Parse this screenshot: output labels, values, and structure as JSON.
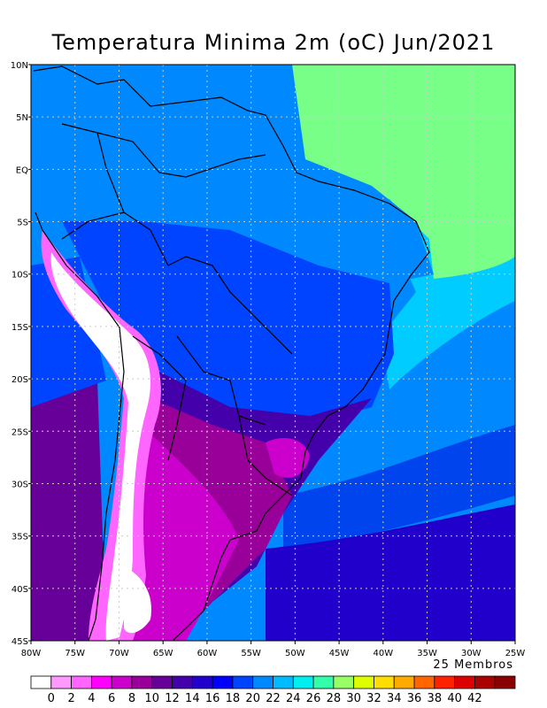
{
  "title": "Temperatura Minima 2m (oC) Jun/2021",
  "members_label": "25 Membros",
  "lat_ticks": [
    {
      "value": 10,
      "label": "10N"
    },
    {
      "value": 5,
      "label": "5N"
    },
    {
      "value": 0,
      "label": "EQ"
    },
    {
      "value": -5,
      "label": "5S"
    },
    {
      "value": -10,
      "label": "10S"
    },
    {
      "value": -15,
      "label": "15S"
    },
    {
      "value": -20,
      "label": "20S"
    },
    {
      "value": -25,
      "label": "25S"
    },
    {
      "value": -30,
      "label": "30S"
    },
    {
      "value": -35,
      "label": "35S"
    },
    {
      "value": -40,
      "label": "40S"
    },
    {
      "value": -45,
      "label": "45S"
    }
  ],
  "lon_ticks": [
    {
      "value": -80,
      "label": "80W"
    },
    {
      "value": -75,
      "label": "75W"
    },
    {
      "value": -70,
      "label": "70W"
    },
    {
      "value": -65,
      "label": "65W"
    },
    {
      "value": -60,
      "label": "60W"
    },
    {
      "value": -55,
      "label": "55W"
    },
    {
      "value": -50,
      "label": "50W"
    },
    {
      "value": -45,
      "label": "45W"
    },
    {
      "value": -40,
      "label": "40W"
    },
    {
      "value": -35,
      "label": "35W"
    },
    {
      "value": -30,
      "label": "30W"
    },
    {
      "value": -25,
      "label": "25W"
    }
  ],
  "colorbar": {
    "colors": [
      "#ffffff",
      "#ff99ff",
      "#ff66ff",
      "#ff00ff",
      "#cc00cc",
      "#990099",
      "#660099",
      "#4400aa",
      "#2200cc",
      "#0000ff",
      "#0044ff",
      "#0088ff",
      "#00bbff",
      "#00eeee",
      "#33ffaa",
      "#99ff66",
      "#ddff00",
      "#ffdd00",
      "#ffaa00",
      "#ff6600",
      "#ff2200",
      "#dd0000",
      "#aa0000",
      "#880000"
    ],
    "labels": [
      "0",
      "2",
      "4",
      "6",
      "8",
      "10",
      "12",
      "14",
      "16",
      "18",
      "20",
      "22",
      "24",
      "26",
      "28",
      "30",
      "32",
      "34",
      "36",
      "38",
      "40",
      "42"
    ]
  },
  "map_colors": {
    "ocean_north": "#77ff88",
    "ocean_mid": "#00ccff",
    "ocean_blue": "#0088ff",
    "ocean_deep": "#0044ee",
    "ocean_south": "#2200cc",
    "land_north": "#0088ff",
    "land_central": "#0044ff",
    "land_south": "#4400aa",
    "cold_purple": "#990099",
    "cold_magenta": "#cc00cc",
    "andes_pink": "#ff66ff",
    "andes_white": "#ffffff",
    "pacific_purple": "#660099"
  }
}
